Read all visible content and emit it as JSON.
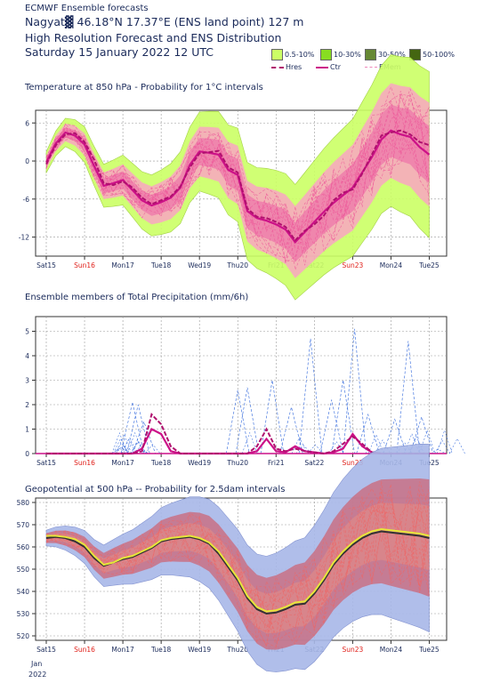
{
  "header": {
    "line1": "ECMWF Ensemble forecasts",
    "line2": "Nagyat▓ 46.18°N 17.37°E (ENS land point) 127 m",
    "line3": "High Resolution Forecast and ENS Distribution",
    "line4": "Saturday 15 January 2022 12 UTC"
  },
  "legend": {
    "bins": [
      {
        "label": "0.5-10%",
        "color": "#ccff66"
      },
      {
        "label": "10-30%",
        "color": "#88dd22"
      },
      {
        "label": "30-50%",
        "color": "#668833"
      },
      {
        "label": "50-100%",
        "color": "#446611"
      }
    ],
    "lines": [
      {
        "label": "Hres",
        "color": "#b0106e",
        "style": "dashed"
      },
      {
        "label": "Ctr",
        "color": "#cc1188",
        "style": "solid"
      },
      {
        "label": "EMem",
        "color": "#ee88bb",
        "style": "dashed"
      }
    ]
  },
  "x_axis": {
    "labels": [
      "Sat15",
      "Sun16",
      "Mon17",
      "Tue18",
      "Wed19",
      "Thu20",
      "Fri21",
      "Sat22",
      "Sun23",
      "Mon24",
      "Tue25"
    ],
    "sunday_color": "#e0201a",
    "year_note": [
      "Jan",
      "2022"
    ]
  },
  "chart_data": [
    {
      "type": "line",
      "title": "Temperature at 850 hPa - Probability for 1°C intervals",
      "ylim": [
        -15,
        8
      ],
      "yticks": [
        "6",
        "0",
        "-6",
        "-12"
      ],
      "ytick_values": [
        6,
        0,
        -6,
        -12
      ],
      "x": [
        0,
        0.25,
        0.5,
        0.75,
        1.0,
        1.25,
        1.5,
        1.75,
        2.0,
        2.25,
        2.5,
        2.75,
        3.0,
        3.25,
        3.5,
        3.75,
        4.0,
        4.25,
        4.5,
        4.75,
        5.0,
        5.25,
        5.5,
        5.75,
        6.0,
        6.25,
        6.5,
        6.75,
        7.0,
        7.25,
        7.5,
        7.75,
        8.0,
        8.25,
        8.5,
        8.75,
        9.0,
        9.25,
        9.5,
        9.75,
        10.0
      ],
      "series": [
        {
          "name": "Hres",
          "values": [
            -0.5,
            2.5,
            4.2,
            4.4,
            3.0,
            0.2,
            -3.5,
            -3.8,
            -3.2,
            -4.2,
            -5.8,
            -6.8,
            -6.2,
            -5.6,
            -4.0,
            -1.0,
            1.2,
            1.4,
            1.6,
            -1.0,
            -1.8,
            -7.5,
            -8.8,
            -9.0,
            -9.6,
            -10.4,
            -12.5,
            -11.0,
            -10.0,
            -8.6,
            -6.2,
            -5.0,
            -4.5,
            -2.0,
            1.0,
            4.0,
            4.5,
            4.8,
            4.2,
            3.0,
            2.5
          ]
        },
        {
          "name": "Ctr",
          "values": [
            -0.2,
            2.8,
            4.5,
            4.0,
            2.6,
            -0.8,
            -3.9,
            -3.5,
            -3.0,
            -4.6,
            -6.2,
            -7.0,
            -6.5,
            -5.8,
            -4.2,
            -0.6,
            1.5,
            1.3,
            1.0,
            -1.4,
            -2.2,
            -7.9,
            -9.0,
            -9.4,
            -10.0,
            -10.8,
            -12.8,
            -11.2,
            -9.6,
            -8.0,
            -6.6,
            -5.4,
            -4.2,
            -1.8,
            0.6,
            3.4,
            4.8,
            4.2,
            3.8,
            2.2,
            1.0
          ]
        }
      ]
    },
    {
      "type": "line",
      "title": "Ensemble members of Total Precipitation (mm/6h)",
      "ylim": [
        0,
        5.6
      ],
      "yticks": [
        "5",
        "4",
        "3",
        "2",
        "1",
        "0"
      ],
      "ytick_values": [
        5,
        4,
        3,
        2,
        1,
        0
      ],
      "x": [
        0,
        0.25,
        0.5,
        0.75,
        1.0,
        1.25,
        1.5,
        1.75,
        2.0,
        2.25,
        2.5,
        2.75,
        3.0,
        3.25,
        3.5,
        3.75,
        4.0,
        4.25,
        4.5,
        4.75,
        5.0,
        5.25,
        5.5,
        5.75,
        6.0,
        6.25,
        6.5,
        6.75,
        7.0,
        7.25,
        7.5,
        7.75,
        8.0,
        8.25,
        8.5,
        8.75,
        9.0,
        9.25,
        9.5,
        9.75,
        10.0
      ],
      "series": [
        {
          "name": "Hres",
          "values": [
            0,
            0,
            0,
            0,
            0,
            0,
            0,
            0,
            0,
            0,
            0.1,
            1.6,
            1.2,
            0.3,
            0,
            0,
            0,
            0,
            0,
            0,
            0,
            0,
            0.3,
            1.0,
            0.2,
            0.1,
            0.2,
            0.1,
            0.05,
            0,
            0.1,
            0.4,
            0.7,
            0.4,
            0.05,
            0,
            0,
            0,
            0,
            0,
            0
          ]
        },
        {
          "name": "Ctr",
          "values": [
            0,
            0,
            0,
            0,
            0,
            0,
            0,
            0,
            0,
            0,
            0.2,
            1.0,
            0.8,
            0.1,
            0,
            0,
            0,
            0,
            0,
            0,
            0,
            0,
            0.1,
            0.6,
            0.1,
            0.05,
            0.3,
            0.1,
            0.05,
            0,
            0.05,
            0.2,
            0.8,
            0.3,
            0.05,
            0,
            0,
            0,
            0,
            0,
            0
          ]
        }
      ],
      "member_peaks": [
        {
          "x": 2.25,
          "y": 2.1
        },
        {
          "x": 2.4,
          "y": 2.0
        },
        {
          "x": 2.55,
          "y": 1.3
        },
        {
          "x": 5.0,
          "y": 2.6
        },
        {
          "x": 5.25,
          "y": 2.7
        },
        {
          "x": 5.9,
          "y": 3.0
        },
        {
          "x": 6.4,
          "y": 1.9
        },
        {
          "x": 6.9,
          "y": 4.7
        },
        {
          "x": 7.45,
          "y": 2.2
        },
        {
          "x": 7.75,
          "y": 3.0
        },
        {
          "x": 8.05,
          "y": 5.1
        },
        {
          "x": 8.4,
          "y": 1.6
        },
        {
          "x": 9.1,
          "y": 1.4
        },
        {
          "x": 9.45,
          "y": 4.6
        },
        {
          "x": 9.8,
          "y": 1.5
        }
      ]
    },
    {
      "type": "line",
      "title": "Geopotential at 500 hPa -- Probability for 2.5dam intervals",
      "ylim": [
        518,
        582
      ],
      "yticks": [
        "580",
        "570",
        "560",
        "550",
        "540",
        "530",
        "520"
      ],
      "ytick_values": [
        580,
        570,
        560,
        550,
        540,
        530,
        520
      ],
      "x": [
        0,
        0.25,
        0.5,
        0.75,
        1.0,
        1.25,
        1.5,
        1.75,
        2.0,
        2.25,
        2.5,
        2.75,
        3.0,
        3.25,
        3.5,
        3.75,
        4.0,
        4.25,
        4.5,
        4.75,
        5.0,
        5.25,
        5.5,
        5.75,
        6.0,
        6.25,
        6.5,
        6.75,
        7.0,
        7.25,
        7.5,
        7.75,
        8.0,
        8.25,
        8.5,
        8.75,
        9.0,
        9.25,
        9.5,
        9.75,
        10.0
      ],
      "series": [
        {
          "name": "Hres",
          "values": [
            565,
            565,
            564.5,
            563.5,
            561,
            556,
            552,
            553,
            555,
            556,
            558,
            560,
            563,
            564,
            564.5,
            565,
            564,
            562,
            558,
            552,
            546,
            538,
            533,
            531,
            531.5,
            533,
            535,
            535.5,
            540,
            546,
            553,
            558,
            562,
            565,
            567,
            568,
            567.5,
            567,
            566.5,
            566,
            565
          ]
        },
        {
          "name": "Ctr",
          "values": [
            564,
            564.5,
            564,
            562.5,
            560,
            555,
            551.5,
            553,
            554.5,
            555.5,
            557.5,
            559.5,
            562.5,
            563.5,
            564,
            564.5,
            563.5,
            561.5,
            557,
            551,
            545,
            537,
            532,
            530,
            530.5,
            532,
            534,
            534.5,
            539,
            545,
            552,
            557,
            561,
            564,
            566,
            567,
            566.5,
            566,
            565.5,
            565,
            564
          ]
        }
      ]
    }
  ]
}
